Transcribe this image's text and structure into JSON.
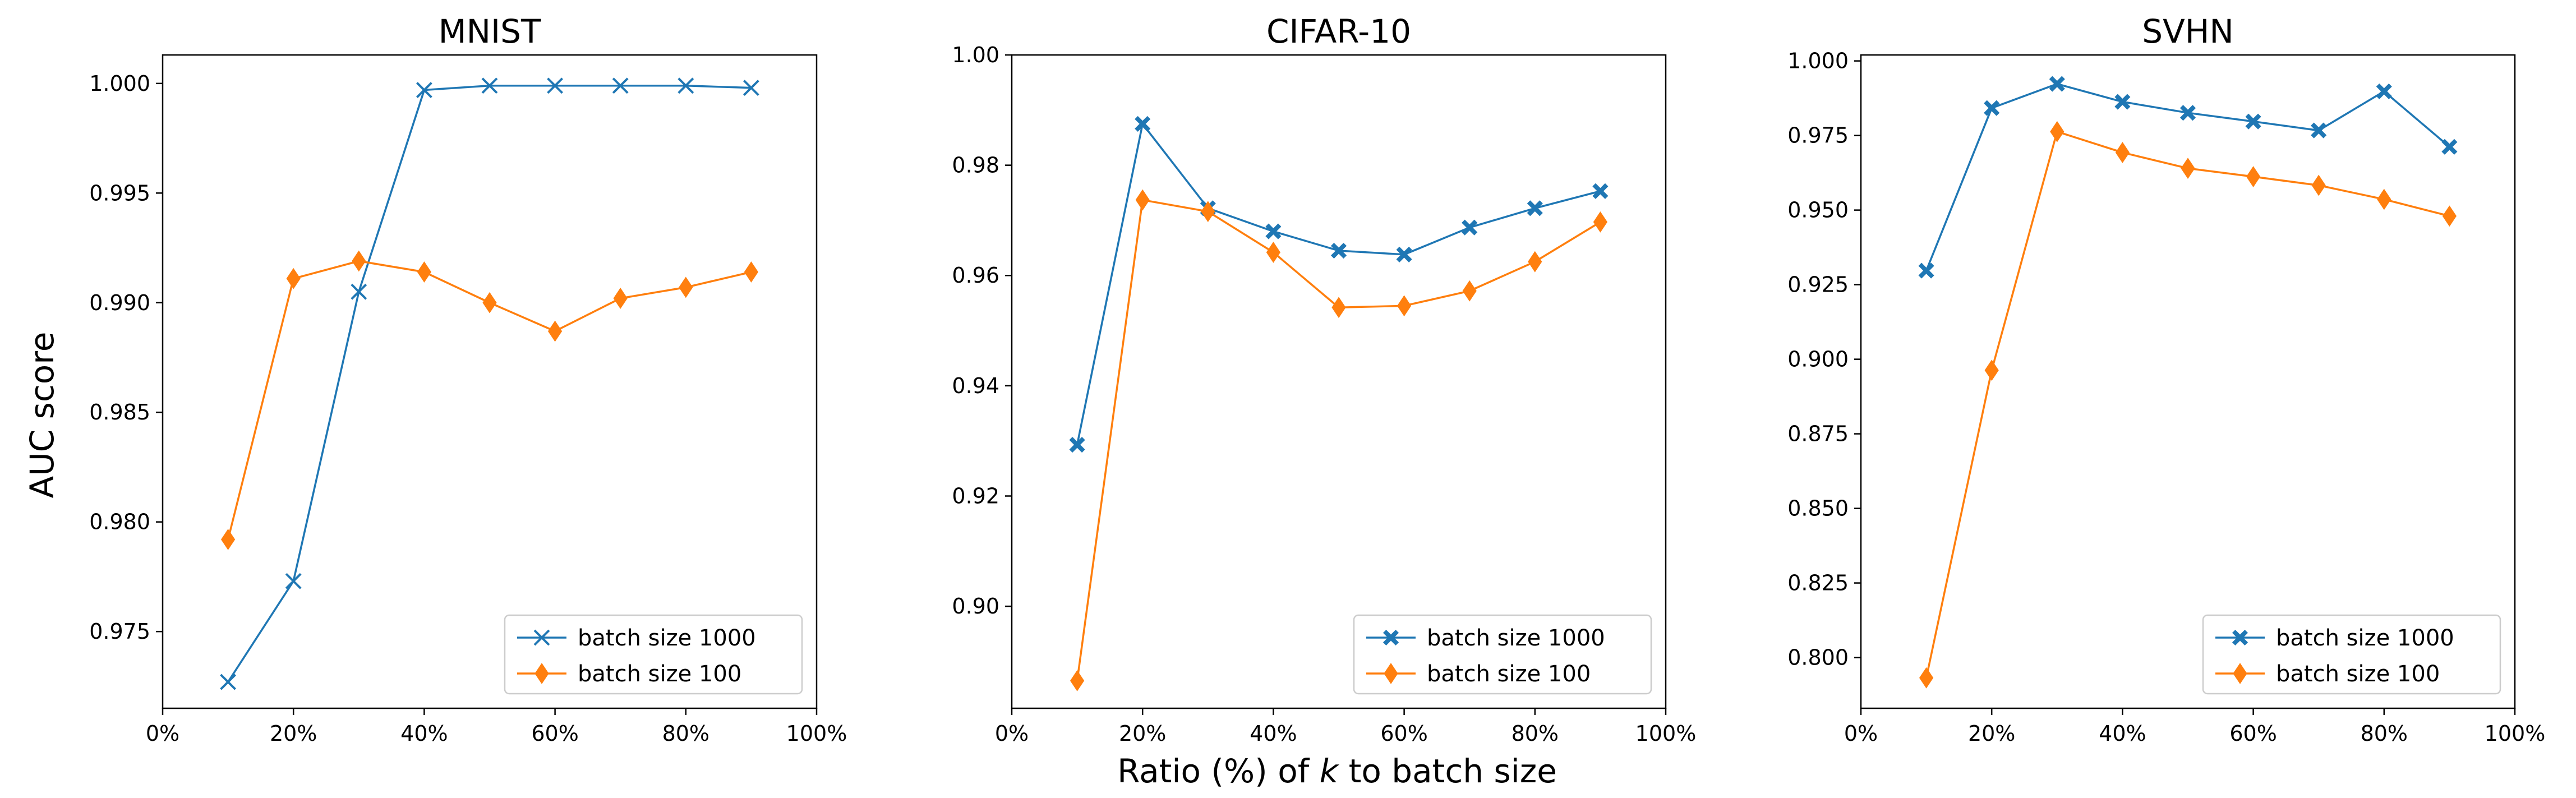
{
  "figure": {
    "ylabel": "AUC score",
    "xlabel_prefix": "Ratio (%) of ",
    "xlabel_var": "k",
    "xlabel_suffix": " to batch size"
  },
  "chart_data": [
    {
      "type": "line",
      "title": "MNIST",
      "x": [
        10,
        20,
        30,
        40,
        50,
        60,
        70,
        80,
        90
      ],
      "xlim": [
        0,
        100
      ],
      "xticks": [
        0,
        20,
        40,
        60,
        80,
        100
      ],
      "xtick_labels": [
        "0%",
        "20%",
        "40%",
        "60%",
        "80%",
        "100%"
      ],
      "ylim": [
        0.9715,
        1.0013
      ],
      "yticks": [
        0.975,
        0.98,
        0.985,
        0.99,
        0.995,
        1.0
      ],
      "ytick_labels": [
        "0.975",
        "0.980",
        "0.985",
        "0.990",
        "0.995",
        "1.000"
      ],
      "legend_position": "lower-right",
      "series": [
        {
          "name": "batch size 1000",
          "color": "#1f77b4",
          "marker": "x",
          "values": [
            0.9727,
            0.9773,
            0.9905,
            0.9997,
            0.9999,
            0.9999,
            0.9999,
            0.9999,
            0.9998
          ]
        },
        {
          "name": "batch size 100",
          "color": "#ff7f0e",
          "marker": "diamond",
          "values": [
            0.9792,
            0.9911,
            0.9919,
            0.9914,
            0.99,
            0.9887,
            0.9902,
            0.9907,
            0.9914
          ]
        }
      ]
    },
    {
      "type": "line",
      "title": "CIFAR-10",
      "x": [
        10,
        20,
        30,
        40,
        50,
        60,
        70,
        80,
        90
      ],
      "xlim": [
        0,
        100
      ],
      "xticks": [
        0,
        20,
        40,
        60,
        80,
        100
      ],
      "xtick_labels": [
        "0%",
        "20%",
        "40%",
        "60%",
        "80%",
        "100%"
      ],
      "ylim": [
        0.8815,
        1.0
      ],
      "yticks": [
        0.9,
        0.92,
        0.94,
        0.96,
        0.98,
        1.0
      ],
      "ytick_labels": [
        "0.90",
        "0.92",
        "0.94",
        "0.96",
        "0.98",
        "1.00"
      ],
      "legend_position": "lower-right",
      "series": [
        {
          "name": "batch size 1000",
          "color": "#1f77b4",
          "marker": "filled-x",
          "values": [
            0.9293,
            0.9875,
            0.9722,
            0.968,
            0.9645,
            0.9638,
            0.9687,
            0.9722,
            0.9753
          ]
        },
        {
          "name": "batch size 100",
          "color": "#ff7f0e",
          "marker": "diamond",
          "values": [
            0.8865,
            0.9737,
            0.9716,
            0.9642,
            0.9542,
            0.9545,
            0.9572,
            0.9625,
            0.9697
          ]
        }
      ]
    },
    {
      "type": "line",
      "title": "SVHN",
      "x": [
        10,
        20,
        30,
        40,
        50,
        60,
        70,
        80,
        90
      ],
      "xlim": [
        0,
        100
      ],
      "xticks": [
        0,
        20,
        40,
        60,
        80,
        100
      ],
      "xtick_labels": [
        "0%",
        "20%",
        "40%",
        "60%",
        "80%",
        "100%"
      ],
      "ylim": [
        0.783,
        1.002
      ],
      "yticks": [
        0.8,
        0.825,
        0.85,
        0.875,
        0.9,
        0.925,
        0.95,
        0.975,
        1.0
      ],
      "ytick_labels": [
        "0.800",
        "0.825",
        "0.850",
        "0.875",
        "0.900",
        "0.925",
        "0.950",
        "0.975",
        "1.000"
      ],
      "legend_position": "lower-right",
      "series": [
        {
          "name": "batch size 1000",
          "color": "#1f77b4",
          "marker": "filled-x",
          "values": [
            0.9297,
            0.9842,
            0.9923,
            0.9863,
            0.9826,
            0.9797,
            0.9767,
            0.9898,
            0.9712
          ]
        },
        {
          "name": "batch size 100",
          "color": "#ff7f0e",
          "marker": "diamond",
          "values": [
            0.7932,
            0.8963,
            0.9763,
            0.9693,
            0.964,
            0.9612,
            0.9583,
            0.9536,
            0.948
          ]
        }
      ]
    }
  ]
}
